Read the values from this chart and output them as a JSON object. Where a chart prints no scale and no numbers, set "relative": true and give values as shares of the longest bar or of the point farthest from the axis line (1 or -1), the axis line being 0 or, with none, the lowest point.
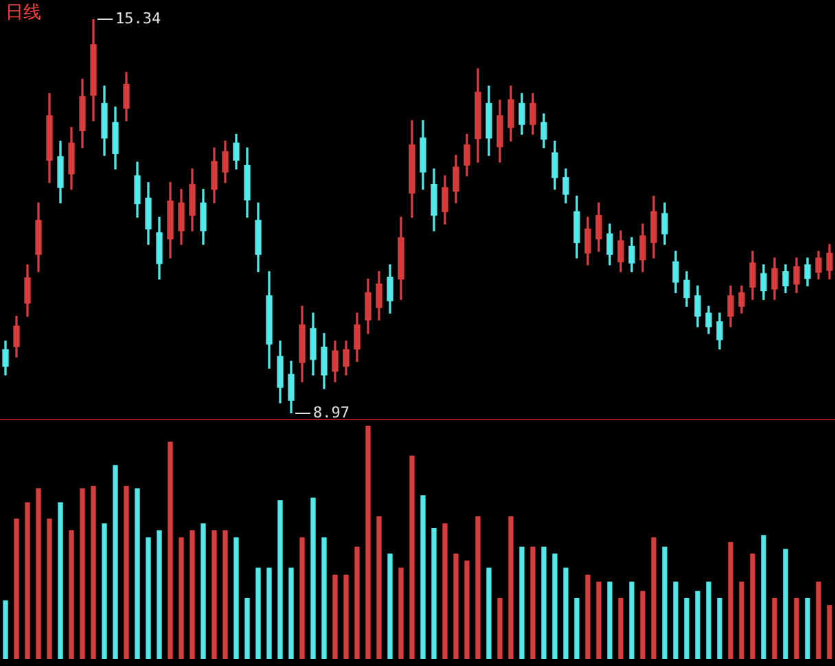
{
  "chart_data": [
    {
      "type": "candlestick",
      "title": "日线",
      "tick_labels": false,
      "categories": [
        null,
        null,
        null,
        null,
        null,
        null,
        null,
        null,
        null,
        null,
        null,
        null,
        null,
        null,
        null,
        null,
        null,
        null,
        null,
        null,
        null,
        null,
        null,
        null,
        null,
        null,
        null,
        null,
        null,
        null,
        null,
        null,
        null,
        null,
        null,
        null,
        null,
        null,
        null,
        null,
        null,
        null,
        null,
        null,
        null,
        null,
        null,
        null,
        null,
        null,
        null,
        null,
        null,
        null,
        null,
        null,
        null,
        null,
        null,
        null,
        null,
        null,
        null,
        null,
        null,
        null,
        null,
        null,
        null,
        null,
        null,
        null,
        null,
        null,
        null,
        null
      ],
      "ohlc": [
        [
          10.0,
          10.14,
          9.59,
          9.73
        ],
        [
          10.05,
          10.54,
          9.88,
          10.38
        ],
        [
          10.75,
          11.37,
          10.54,
          11.16
        ],
        [
          11.54,
          12.37,
          11.26,
          12.09
        ],
        [
          13.06,
          14.14,
          12.7,
          13.78
        ],
        [
          13.12,
          13.37,
          12.37,
          12.62
        ],
        [
          12.84,
          13.59,
          12.59,
          13.34
        ],
        [
          13.54,
          14.37,
          13.26,
          14.09
        ],
        [
          14.11,
          15.34,
          13.7,
          14.93
        ],
        [
          13.98,
          14.26,
          13.14,
          13.42
        ],
        [
          13.67,
          13.92,
          12.92,
          13.17
        ],
        [
          13.9,
          14.48,
          13.7,
          14.29
        ],
        [
          12.81,
          13.03,
          12.14,
          12.36
        ],
        [
          12.45,
          12.7,
          11.7,
          11.95
        ],
        [
          11.89,
          12.14,
          11.14,
          11.39
        ],
        [
          11.79,
          12.7,
          11.48,
          12.4
        ],
        [
          11.92,
          12.59,
          11.7,
          12.37
        ],
        [
          12.17,
          12.92,
          11.92,
          12.67
        ],
        [
          12.37,
          12.59,
          11.7,
          11.92
        ],
        [
          12.59,
          13.26,
          12.37,
          13.04
        ],
        [
          12.87,
          13.37,
          12.7,
          13.2
        ],
        [
          13.34,
          13.48,
          12.92,
          13.06
        ],
        [
          12.98,
          13.26,
          12.14,
          12.42
        ],
        [
          12.09,
          12.37,
          11.26,
          11.54
        ],
        [
          10.87,
          11.26,
          9.7,
          10.09
        ],
        [
          9.89,
          10.14,
          9.14,
          9.39
        ],
        [
          9.6,
          9.81,
          8.97,
          9.18
        ],
        [
          9.79,
          10.7,
          9.48,
          10.4
        ],
        [
          10.34,
          10.59,
          9.59,
          9.84
        ],
        [
          10.04,
          10.26,
          9.37,
          9.59
        ],
        [
          9.65,
          10.14,
          9.48,
          9.98
        ],
        [
          9.73,
          10.14,
          9.59,
          10.0
        ],
        [
          10.01,
          10.59,
          9.81,
          10.4
        ],
        [
          10.48,
          11.14,
          10.26,
          10.92
        ],
        [
          10.68,
          11.26,
          10.48,
          11.06
        ],
        [
          11.17,
          11.37,
          10.59,
          10.79
        ],
        [
          11.14,
          12.14,
          10.81,
          11.81
        ],
        [
          12.53,
          13.7,
          12.14,
          13.31
        ],
        [
          13.42,
          13.7,
          12.59,
          12.87
        ],
        [
          12.67,
          12.92,
          11.92,
          12.17
        ],
        [
          12.23,
          12.81,
          12.03,
          12.62
        ],
        [
          12.56,
          13.14,
          12.37,
          12.95
        ],
        [
          12.98,
          13.48,
          12.81,
          13.31
        ],
        [
          13.41,
          14.54,
          13.03,
          14.16
        ],
        [
          13.98,
          14.26,
          13.14,
          13.42
        ],
        [
          13.28,
          14.03,
          13.03,
          13.78
        ],
        [
          13.59,
          14.26,
          13.37,
          14.04
        ],
        [
          13.98,
          14.14,
          13.48,
          13.64
        ],
        [
          13.64,
          14.14,
          13.48,
          13.98
        ],
        [
          13.67,
          13.81,
          13.26,
          13.4
        ],
        [
          13.18,
          13.37,
          12.59,
          12.78
        ],
        [
          12.78,
          12.92,
          12.37,
          12.51
        ],
        [
          12.23,
          12.48,
          11.48,
          11.73
        ],
        [
          11.56,
          12.14,
          11.37,
          11.95
        ],
        [
          11.79,
          12.37,
          11.59,
          12.17
        ],
        [
          11.87,
          12.03,
          11.37,
          11.54
        ],
        [
          11.42,
          11.92,
          11.26,
          11.76
        ],
        [
          11.67,
          11.81,
          11.26,
          11.4
        ],
        [
          11.45,
          12.03,
          11.26,
          11.84
        ],
        [
          11.73,
          12.48,
          11.48,
          12.23
        ],
        [
          12.2,
          12.37,
          11.7,
          11.87
        ],
        [
          11.42,
          11.59,
          10.92,
          11.09
        ],
        [
          11.12,
          11.26,
          10.7,
          10.84
        ],
        [
          10.87,
          11.03,
          10.37,
          10.54
        ],
        [
          10.59,
          10.7,
          10.26,
          10.37
        ],
        [
          10.45,
          10.59,
          10.01,
          10.16
        ],
        [
          10.54,
          11.03,
          10.37,
          10.87
        ],
        [
          10.7,
          11.03,
          10.59,
          10.92
        ],
        [
          11.01,
          11.59,
          10.81,
          11.4
        ],
        [
          11.23,
          11.37,
          10.81,
          10.95
        ],
        [
          10.98,
          11.48,
          10.81,
          11.31
        ],
        [
          11.26,
          11.37,
          10.92,
          11.03
        ],
        [
          11.06,
          11.48,
          10.92,
          11.34
        ],
        [
          11.37,
          11.48,
          11.03,
          11.15
        ],
        [
          11.25,
          11.59,
          11.14,
          11.48
        ],
        [
          11.28,
          11.7,
          11.14,
          11.56
        ]
      ],
      "colors": [
        "#54e8e8",
        "#d83c3c",
        "#d83c3c",
        "#d83c3c",
        "#d83c3c",
        "#54e8e8",
        "#d83c3c",
        "#d83c3c",
        "#d83c3c",
        "#54e8e8",
        "#54e8e8",
        "#d83c3c",
        "#54e8e8",
        "#54e8e8",
        "#54e8e8",
        "#d83c3c",
        "#d83c3c",
        "#d83c3c",
        "#54e8e8",
        "#d83c3c",
        "#d83c3c",
        "#54e8e8",
        "#54e8e8",
        "#54e8e8",
        "#54e8e8",
        "#54e8e8",
        "#54e8e8",
        "#d83c3c",
        "#54e8e8",
        "#54e8e8",
        "#d83c3c",
        "#d83c3c",
        "#d83c3c",
        "#d83c3c",
        "#d83c3c",
        "#54e8e8",
        "#d83c3c",
        "#d83c3c",
        "#54e8e8",
        "#54e8e8",
        "#d83c3c",
        "#d83c3c",
        "#d83c3c",
        "#d83c3c",
        "#54e8e8",
        "#d83c3c",
        "#d83c3c",
        "#54e8e8",
        "#d83c3c",
        "#54e8e8",
        "#54e8e8",
        "#54e8e8",
        "#54e8e8",
        "#d83c3c",
        "#d83c3c",
        "#54e8e8",
        "#d83c3c",
        "#54e8e8",
        "#d83c3c",
        "#d83c3c",
        "#54e8e8",
        "#54e8e8",
        "#54e8e8",
        "#54e8e8",
        "#54e8e8",
        "#54e8e8",
        "#d83c3c",
        "#d83c3c",
        "#d83c3c",
        "#54e8e8",
        "#d83c3c",
        "#54e8e8",
        "#d83c3c",
        "#54e8e8",
        "#d83c3c",
        "#d83c3c"
      ],
      "annotations": [
        "15.34",
        "8.97"
      ]
    },
    {
      "type": "bar",
      "relative": true,
      "tick_labels": false,
      "categories": [
        null,
        null,
        null,
        null,
        null,
        null,
        null,
        null,
        null,
        null,
        null,
        null,
        null,
        null,
        null,
        null,
        null,
        null,
        null,
        null,
        null,
        null,
        null,
        null,
        null,
        null,
        null,
        null,
        null,
        null,
        null,
        null,
        null,
        null,
        null,
        null,
        null,
        null,
        null,
        null,
        null,
        null,
        null,
        null,
        null,
        null,
        null,
        null,
        null,
        null,
        null,
        null,
        null,
        null,
        null,
        null,
        null,
        null,
        null,
        null,
        null,
        null,
        null,
        null,
        null,
        null,
        null,
        null,
        null,
        null,
        null,
        null,
        null,
        null,
        null,
        null
      ],
      "values": [
        0.25,
        0.6,
        0.67,
        0.73,
        0.6,
        0.67,
        0.55,
        0.73,
        0.74,
        0.58,
        0.83,
        0.74,
        0.73,
        0.52,
        0.55,
        0.93,
        0.52,
        0.55,
        0.58,
        0.55,
        0.55,
        0.52,
        0.26,
        0.39,
        0.39,
        0.68,
        0.39,
        0.52,
        0.69,
        0.52,
        0.36,
        0.36,
        0.48,
        1,
        0.61,
        0.45,
        0.39,
        0.87,
        0.7,
        0.56,
        0.58,
        0.45,
        0.42,
        0.61,
        0.39,
        0.26,
        0.61,
        0.48,
        0.48,
        0.48,
        0.45,
        0.39,
        0.26,
        0.36,
        0.33,
        0.33,
        0.26,
        0.33,
        0.29,
        0.52,
        0.48,
        0.33,
        0.26,
        0.29,
        0.33,
        0.26,
        0.5,
        0.33,
        0.45,
        0.53,
        0.26,
        0.47,
        0.26,
        0.26,
        0.33,
        0.23
      ],
      "colors": [
        "#54e8e8",
        "#d83c3c",
        "#d83c3c",
        "#d83c3c",
        "#d83c3c",
        "#54e8e8",
        "#d83c3c",
        "#d83c3c",
        "#d83c3c",
        "#54e8e8",
        "#54e8e8",
        "#d83c3c",
        "#54e8e8",
        "#54e8e8",
        "#54e8e8",
        "#d83c3c",
        "#d83c3c",
        "#d83c3c",
        "#54e8e8",
        "#d83c3c",
        "#d83c3c",
        "#54e8e8",
        "#54e8e8",
        "#54e8e8",
        "#54e8e8",
        "#54e8e8",
        "#54e8e8",
        "#d83c3c",
        "#54e8e8",
        "#54e8e8",
        "#d83c3c",
        "#d83c3c",
        "#d83c3c",
        "#d83c3c",
        "#d83c3c",
        "#54e8e8",
        "#d83c3c",
        "#d83c3c",
        "#54e8e8",
        "#54e8e8",
        "#d83c3c",
        "#d83c3c",
        "#d83c3c",
        "#d83c3c",
        "#54e8e8",
        "#d83c3c",
        "#d83c3c",
        "#54e8e8",
        "#d83c3c",
        "#54e8e8",
        "#54e8e8",
        "#54e8e8",
        "#54e8e8",
        "#d83c3c",
        "#d83c3c",
        "#54e8e8",
        "#d83c3c",
        "#54e8e8",
        "#d83c3c",
        "#d83c3c",
        "#54e8e8",
        "#54e8e8",
        "#54e8e8",
        "#54e8e8",
        "#54e8e8",
        "#54e8e8",
        "#d83c3c",
        "#d83c3c",
        "#d83c3c",
        "#54e8e8",
        "#d83c3c",
        "#54e8e8",
        "#d83c3c",
        "#54e8e8",
        "#d83c3c",
        "#d83c3c"
      ]
    }
  ]
}
